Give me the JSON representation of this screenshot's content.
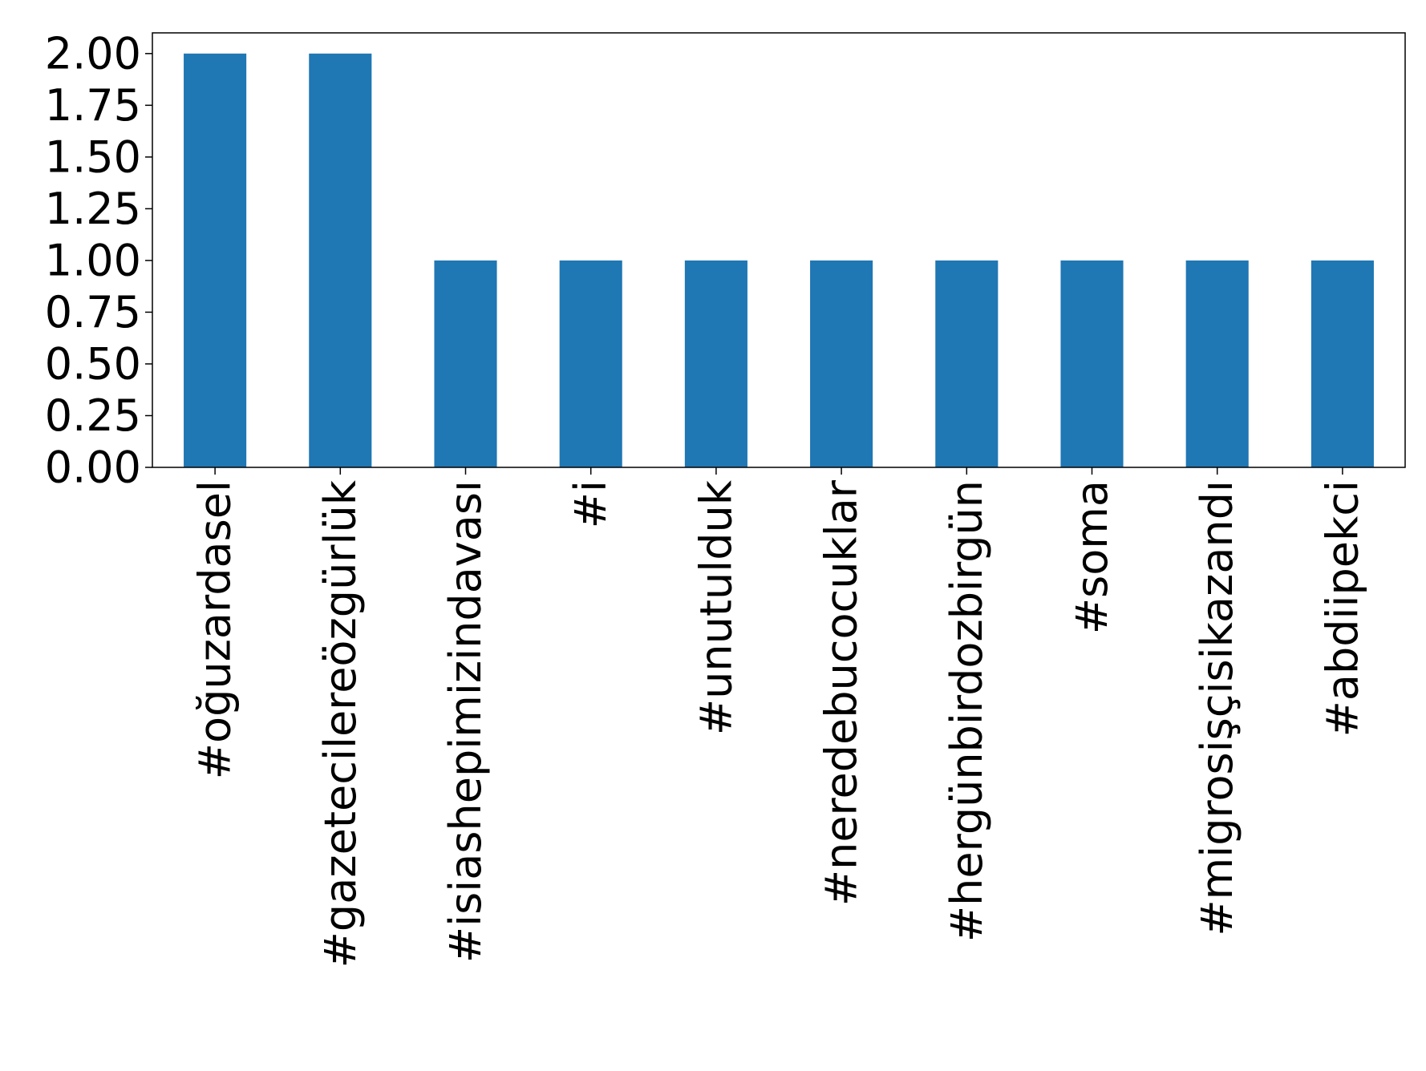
{
  "chart_data": {
    "type": "bar",
    "categories": [
      "#oğuzardasel",
      "#gazetecilereözgürlük",
      "#isiashepimizindavası",
      "#i",
      "#unutulduk",
      "#neredebucocuklar",
      "#hergünbirdozbirgün",
      "#soma",
      "#migrosişçisikazandı",
      "#abdiipekci"
    ],
    "values": [
      2,
      2,
      1,
      1,
      1,
      1,
      1,
      1,
      1,
      1
    ],
    "title": "",
    "xlabel": "",
    "ylabel": "",
    "ylim": [
      0,
      2.1
    ],
    "yticks": [
      "0.00",
      "0.25",
      "0.50",
      "0.75",
      "1.00",
      "1.25",
      "1.50",
      "1.75",
      "2.00"
    ],
    "bar_color": "#1f77b4",
    "grid": false,
    "legend": "none"
  }
}
